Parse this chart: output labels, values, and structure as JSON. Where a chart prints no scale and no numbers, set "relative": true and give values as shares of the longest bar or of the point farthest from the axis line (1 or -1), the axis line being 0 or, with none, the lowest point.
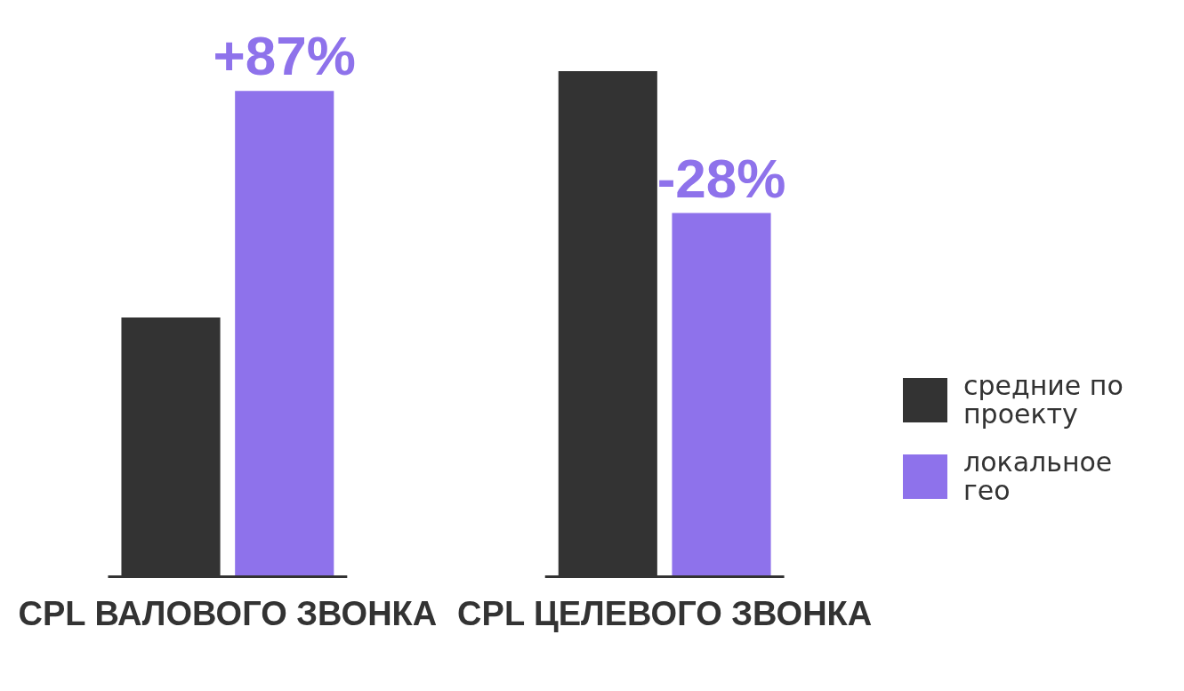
{
  "chart_data": {
    "type": "bar",
    "relative": true,
    "categories": [
      "CPL ВАЛОВОГО ЗВОНКА",
      "CPL ЦЕЛЕВОГО ЗВОНКА"
    ],
    "series": [
      {
        "name": "средние по проекту",
        "color": "#333333",
        "values": [
          0.512,
          1
        ]
      },
      {
        "name": "локальное гео",
        "color": "#8e72eb",
        "values": [
          0.961,
          0.719
        ]
      }
    ],
    "annotations": [
      "+87%",
      "-28%"
    ],
    "legend": "right",
    "grid": false
  }
}
